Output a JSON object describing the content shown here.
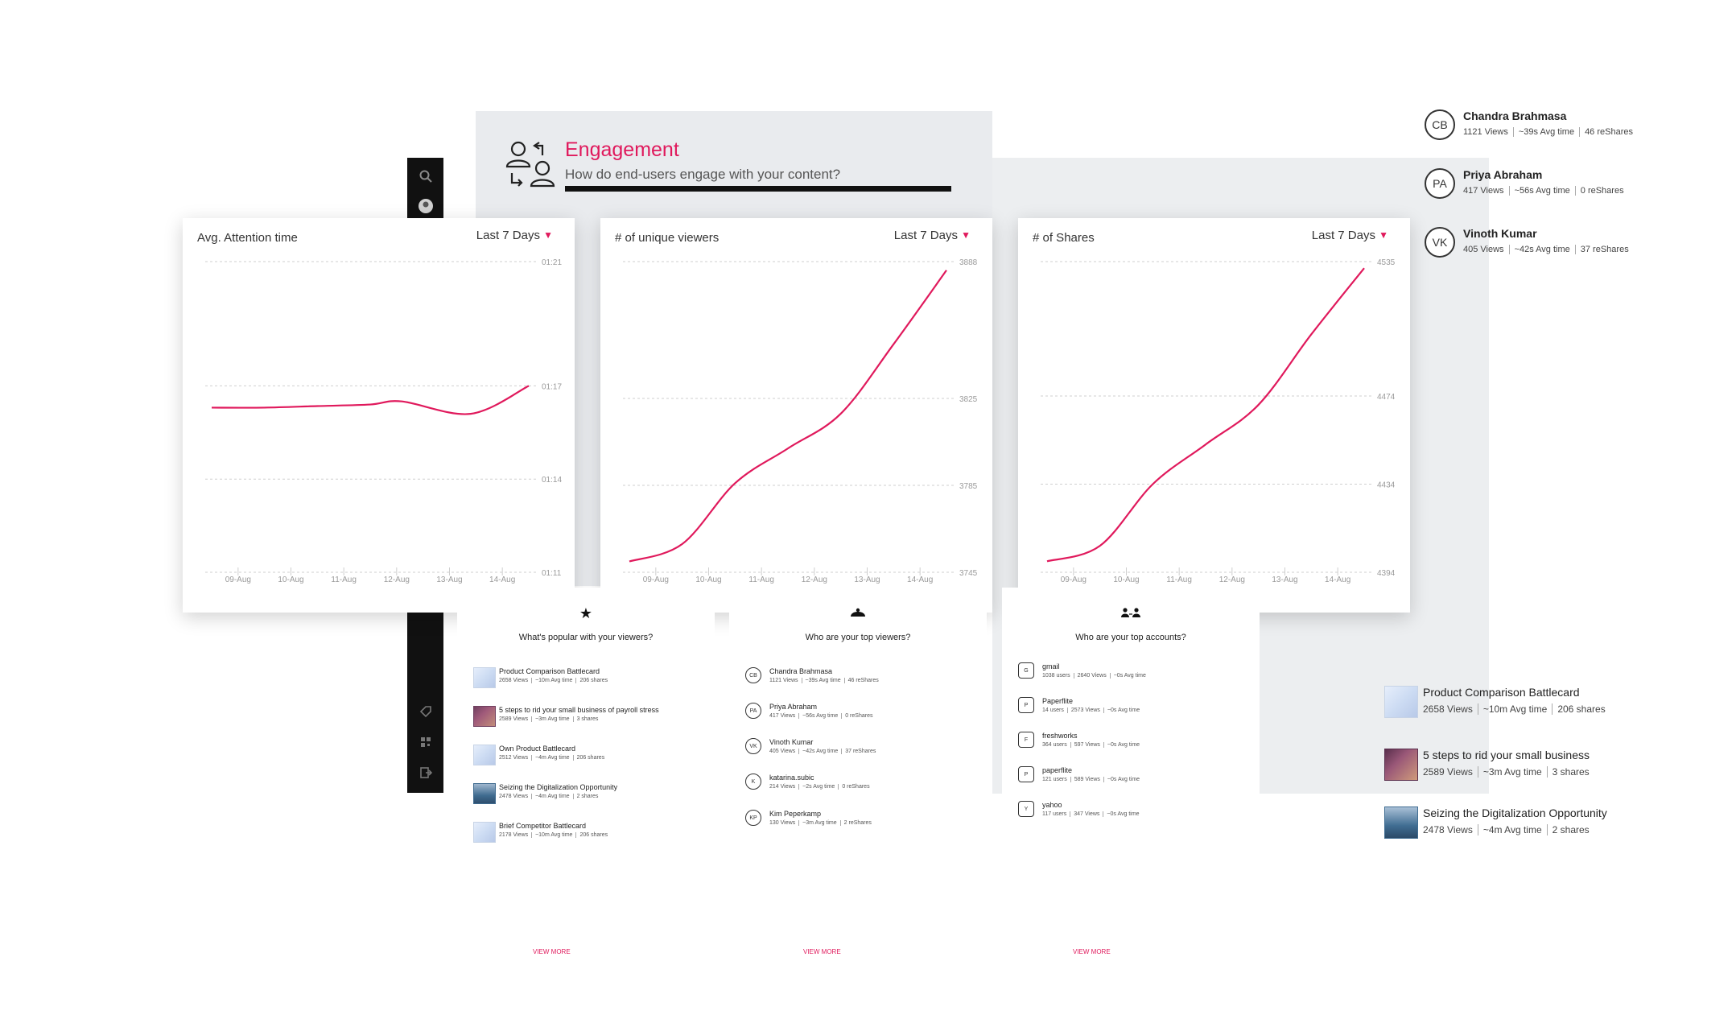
{
  "header": {
    "title": "Engagement",
    "subtitle": "How do end-users engage with your content?"
  },
  "top_accounts": [
    {
      "initials": "CB",
      "name": "Chandra Brahmasa",
      "views": "1121 Views",
      "avg": "~39s Avg time",
      "shares": "46 reShares"
    },
    {
      "initials": "PA",
      "name": "Priya Abraham",
      "views": "417 Views",
      "avg": "~56s Avg time",
      "shares": "0 reShares"
    },
    {
      "initials": "VK",
      "name": "Vinoth Kumar",
      "views": "405 Views",
      "avg": "~42s Avg time",
      "shares": "37 reShares"
    }
  ],
  "cards": [
    {
      "title": "Avg. Attention time",
      "range": "Last 7 Days"
    },
    {
      "title": "# of unique viewers",
      "range": "Last 7 Days"
    },
    {
      "title": "# of Shares",
      "range": "Last 7 Days"
    }
  ],
  "chart_data": [
    {
      "type": "line",
      "title": "Avg. Attention time",
      "categories": [
        "09-Aug",
        "10-Aug",
        "11-Aug",
        "12-Aug",
        "13-Aug",
        "14-Aug"
      ],
      "y_ticks": [
        "01:21",
        "01:17",
        "01:14",
        "01:11"
      ],
      "ylim": [
        71,
        81
      ],
      "values": [
        76.3,
        76.3,
        76.35,
        76.4,
        76.5,
        76.1,
        77.0
      ],
      "x": [
        0,
        1,
        2,
        3,
        3.6,
        4.9,
        6
      ],
      "grid": "dashed horizontal",
      "color": "#e0195c"
    },
    {
      "type": "line",
      "title": "# of unique viewers",
      "categories": [
        "09-Aug",
        "10-Aug",
        "11-Aug",
        "12-Aug",
        "13-Aug",
        "14-Aug"
      ],
      "y_ticks": [
        "3888",
        "3825",
        "3785",
        "3745"
      ],
      "ylim": [
        3745,
        3888
      ],
      "values": [
        3750,
        3758,
        3786,
        3802,
        3818,
        3850,
        3884
      ],
      "x": [
        0,
        1,
        2,
        3,
        4,
        5,
        6
      ],
      "grid": "dashed horizontal",
      "color": "#e0195c"
    },
    {
      "type": "line",
      "title": "# of Shares",
      "categories": [
        "09-Aug",
        "10-Aug",
        "11-Aug",
        "12-Aug",
        "13-Aug",
        "14-Aug"
      ],
      "y_ticks": [
        "4535",
        "4474",
        "4434",
        "4394"
      ],
      "ylim": [
        4394,
        4535
      ],
      "values": [
        4399,
        4406,
        4434,
        4452,
        4470,
        4502,
        4532
      ],
      "x": [
        0,
        1,
        2,
        3,
        4,
        5,
        6
      ],
      "grid": "dashed horizontal",
      "color": "#e0195c"
    }
  ],
  "popular": {
    "title": "What's popular with your viewers?",
    "items": [
      {
        "name": "Product Comparison Battlecard",
        "views": "2658 Views",
        "avg": "~10m Avg time",
        "shares": "206 shares"
      },
      {
        "name": "5 steps to rid your small business of payroll stress",
        "views": "2589 Views",
        "avg": "~3m Avg time",
        "shares": "3 shares"
      },
      {
        "name": "Own Product Battlecard",
        "views": "2512 Views",
        "avg": "~4m Avg time",
        "shares": "206 shares"
      },
      {
        "name": "Seizing the Digitalization Opportunity",
        "views": "2478 Views",
        "avg": "~4m Avg time",
        "shares": "2 shares"
      },
      {
        "name": "Brief Competitor Battlecard",
        "views": "2178 Views",
        "avg": "~10m Avg time",
        "shares": "206 shares"
      }
    ],
    "view_more": "VIEW MORE"
  },
  "top_viewers": {
    "title": "Who are your top viewers?",
    "items": [
      {
        "initials": "CB",
        "name": "Chandra Brahmasa",
        "views": "1121 Views",
        "avg": "~39s Avg time",
        "shares": "46 reShares"
      },
      {
        "initials": "PA",
        "name": "Priya Abraham",
        "views": "417 Views",
        "avg": "~56s Avg time",
        "shares": "0 reShares"
      },
      {
        "initials": "VK",
        "name": "Vinoth Kumar",
        "views": "405 Views",
        "avg": "~42s Avg time",
        "shares": "37 reShares"
      },
      {
        "initials": "K",
        "name": "katarina.subic",
        "views": "214 Views",
        "avg": "~2s Avg time",
        "shares": "0 reShares"
      },
      {
        "initials": "KP",
        "name": "Kim Peperkamp",
        "views": "130 Views",
        "avg": "~3m Avg time",
        "shares": "2 reShares"
      }
    ],
    "view_more": "VIEW MORE"
  },
  "top_accounts_panel": {
    "title": "Who are your top accounts?",
    "items": [
      {
        "initials": "G",
        "name": "gmail",
        "users": "1038 users",
        "views": "2640 Views",
        "avg": "~0s Avg time"
      },
      {
        "initials": "P",
        "name": "Paperflite",
        "users": "14 users",
        "views": "2573 Views",
        "avg": "~0s Avg time"
      },
      {
        "initials": "F",
        "name": "freshworks",
        "users": "364 users",
        "views": "597 Views",
        "avg": "~0s Avg time"
      },
      {
        "initials": "P",
        "name": "paperflite",
        "users": "121 users",
        "views": "589 Views",
        "avg": "~0s Avg time"
      },
      {
        "initials": "Y",
        "name": "yahoo",
        "users": "117 users",
        "views": "347 Views",
        "avg": "~0s Avg time"
      }
    ],
    "view_more": "VIEW MORE"
  },
  "content_highlights": [
    {
      "name": "Product Comparison Battlecard",
      "views": "2658 Views",
      "avg": "~10m Avg time",
      "shares": "206 shares"
    },
    {
      "name": "5 steps to rid your small business",
      "views": "2589 Views",
      "avg": "~3m Avg time",
      "shares": "3 shares"
    },
    {
      "name": "Seizing the Digitalization Opportunity",
      "views": "2478 Views",
      "avg": "~4m Avg time",
      "shares": "2 shares"
    }
  ],
  "colors": {
    "accent": "#e0195c",
    "sidebar": "#111111",
    "panel": "#e9ebee"
  },
  "icons": [
    "search-icon",
    "engagement-users-icon",
    "star-icon",
    "viewers-icon",
    "accounts-icon",
    "chevron-down-icon"
  ]
}
